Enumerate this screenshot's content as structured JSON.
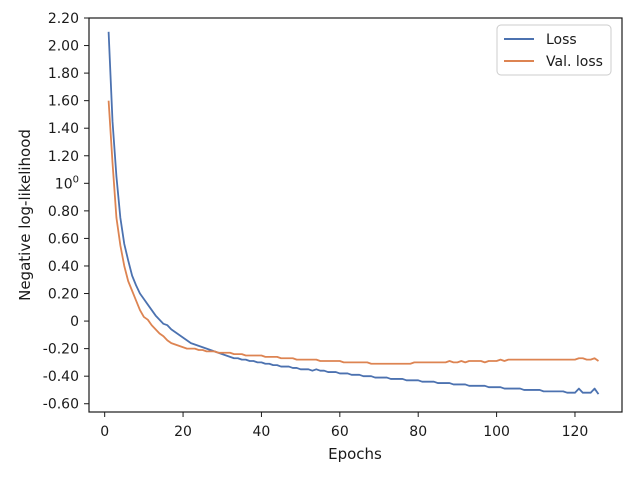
{
  "chart_data": {
    "type": "line",
    "xlabel": "Epochs",
    "ylabel": "Negative log-likelihood",
    "xlim": [
      -4,
      132
    ],
    "ylim": [
      -0.66,
      2.2
    ],
    "x_ticks": [
      0,
      20,
      40,
      60,
      80,
      100,
      120
    ],
    "x_tick_labels": [
      "0",
      "20",
      "40",
      "60",
      "80",
      "100",
      "120"
    ],
    "y_ticks": [
      2.2,
      2.0,
      1.8,
      1.6,
      1.4,
      1.2,
      1.0,
      0.8,
      0.6,
      0.4,
      0.2,
      0.0,
      -0.2,
      -0.4,
      -0.6
    ],
    "y_tick_labels": [
      "2.20",
      "2.00",
      "1.80",
      "1.60",
      "1.40",
      "1.20",
      "10^0",
      "0.80",
      "0.60",
      "0.40",
      "0.20",
      "0",
      "-0.20",
      "-0.40",
      "-0.60"
    ],
    "grid": false,
    "legend_position": "top-right",
    "series": [
      {
        "name": "Loss",
        "color": "#4c72b0",
        "x": [
          1,
          2,
          3,
          4,
          5,
          6,
          7,
          8,
          9,
          10,
          11,
          12,
          13,
          14,
          15,
          16,
          17,
          18,
          19,
          20,
          21,
          22,
          23,
          24,
          25,
          26,
          27,
          28,
          29,
          30,
          31,
          32,
          33,
          34,
          35,
          36,
          37,
          38,
          39,
          40,
          41,
          42,
          43,
          44,
          45,
          46,
          47,
          48,
          49,
          50,
          51,
          52,
          53,
          54,
          55,
          56,
          57,
          58,
          59,
          60,
          61,
          62,
          63,
          64,
          65,
          66,
          67,
          68,
          69,
          70,
          71,
          72,
          73,
          74,
          75,
          76,
          77,
          78,
          79,
          80,
          81,
          82,
          83,
          84,
          85,
          86,
          87,
          88,
          89,
          90,
          91,
          92,
          93,
          94,
          95,
          96,
          97,
          98,
          99,
          100,
          101,
          102,
          103,
          104,
          105,
          106,
          107,
          108,
          109,
          110,
          111,
          112,
          113,
          114,
          115,
          116,
          117,
          118,
          119,
          120,
          121,
          122,
          123,
          124,
          125,
          126
        ],
        "values": [
          2.1,
          1.45,
          1.05,
          0.75,
          0.56,
          0.44,
          0.33,
          0.26,
          0.2,
          0.16,
          0.12,
          0.08,
          0.04,
          0.01,
          -0.02,
          -0.03,
          -0.06,
          -0.08,
          -0.1,
          -0.12,
          -0.14,
          -0.16,
          -0.17,
          -0.18,
          -0.19,
          -0.2,
          -0.21,
          -0.22,
          -0.23,
          -0.24,
          -0.25,
          -0.26,
          -0.27,
          -0.27,
          -0.28,
          -0.28,
          -0.29,
          -0.29,
          -0.3,
          -0.3,
          -0.31,
          -0.31,
          -0.32,
          -0.32,
          -0.33,
          -0.33,
          -0.33,
          -0.34,
          -0.34,
          -0.35,
          -0.35,
          -0.35,
          -0.36,
          -0.35,
          -0.36,
          -0.36,
          -0.37,
          -0.37,
          -0.37,
          -0.38,
          -0.38,
          -0.38,
          -0.39,
          -0.39,
          -0.39,
          -0.4,
          -0.4,
          -0.4,
          -0.41,
          -0.41,
          -0.41,
          -0.41,
          -0.42,
          -0.42,
          -0.42,
          -0.42,
          -0.43,
          -0.43,
          -0.43,
          -0.43,
          -0.44,
          -0.44,
          -0.44,
          -0.44,
          -0.45,
          -0.45,
          -0.45,
          -0.45,
          -0.46,
          -0.46,
          -0.46,
          -0.46,
          -0.47,
          -0.47,
          -0.47,
          -0.47,
          -0.47,
          -0.48,
          -0.48,
          -0.48,
          -0.48,
          -0.49,
          -0.49,
          -0.49,
          -0.49,
          -0.49,
          -0.5,
          -0.5,
          -0.5,
          -0.5,
          -0.5,
          -0.51,
          -0.51,
          -0.51,
          -0.51,
          -0.51,
          -0.51,
          -0.52,
          -0.52,
          -0.52,
          -0.49,
          -0.52,
          -0.52,
          -0.52,
          -0.49,
          -0.53
        ]
      },
      {
        "name": "Val. loss",
        "color": "#dd8452",
        "x": [
          1,
          2,
          3,
          4,
          5,
          6,
          7,
          8,
          9,
          10,
          11,
          12,
          13,
          14,
          15,
          16,
          17,
          18,
          19,
          20,
          21,
          22,
          23,
          24,
          25,
          26,
          27,
          28,
          29,
          30,
          31,
          32,
          33,
          34,
          35,
          36,
          37,
          38,
          39,
          40,
          41,
          42,
          43,
          44,
          45,
          46,
          47,
          48,
          49,
          50,
          51,
          52,
          53,
          54,
          55,
          56,
          57,
          58,
          59,
          60,
          61,
          62,
          63,
          64,
          65,
          66,
          67,
          68,
          69,
          70,
          71,
          72,
          73,
          74,
          75,
          76,
          77,
          78,
          79,
          80,
          81,
          82,
          83,
          84,
          85,
          86,
          87,
          88,
          89,
          90,
          91,
          92,
          93,
          94,
          95,
          96,
          97,
          98,
          99,
          100,
          101,
          102,
          103,
          104,
          105,
          106,
          107,
          108,
          109,
          110,
          111,
          112,
          113,
          114,
          115,
          116,
          117,
          118,
          119,
          120,
          121,
          122,
          123,
          124,
          125,
          126
        ],
        "values": [
          1.6,
          1.15,
          0.75,
          0.55,
          0.4,
          0.29,
          0.22,
          0.15,
          0.08,
          0.03,
          0.01,
          -0.03,
          -0.06,
          -0.09,
          -0.11,
          -0.14,
          -0.16,
          -0.17,
          -0.18,
          -0.19,
          -0.2,
          -0.2,
          -0.2,
          -0.21,
          -0.21,
          -0.22,
          -0.22,
          -0.22,
          -0.23,
          -0.23,
          -0.23,
          -0.23,
          -0.24,
          -0.24,
          -0.24,
          -0.25,
          -0.25,
          -0.25,
          -0.25,
          -0.25,
          -0.26,
          -0.26,
          -0.26,
          -0.26,
          -0.27,
          -0.27,
          -0.27,
          -0.27,
          -0.28,
          -0.28,
          -0.28,
          -0.28,
          -0.28,
          -0.28,
          -0.29,
          -0.29,
          -0.29,
          -0.29,
          -0.29,
          -0.29,
          -0.3,
          -0.3,
          -0.3,
          -0.3,
          -0.3,
          -0.3,
          -0.3,
          -0.31,
          -0.31,
          -0.31,
          -0.31,
          -0.31,
          -0.31,
          -0.31,
          -0.31,
          -0.31,
          -0.31,
          -0.31,
          -0.3,
          -0.3,
          -0.3,
          -0.3,
          -0.3,
          -0.3,
          -0.3,
          -0.3,
          -0.3,
          -0.29,
          -0.3,
          -0.3,
          -0.29,
          -0.3,
          -0.29,
          -0.29,
          -0.29,
          -0.29,
          -0.3,
          -0.29,
          -0.29,
          -0.29,
          -0.28,
          -0.29,
          -0.28,
          -0.28,
          -0.28,
          -0.28,
          -0.28,
          -0.28,
          -0.28,
          -0.28,
          -0.28,
          -0.28,
          -0.28,
          -0.28,
          -0.28,
          -0.28,
          -0.28,
          -0.28,
          -0.28,
          -0.28,
          -0.27,
          -0.27,
          -0.28,
          -0.28,
          -0.27,
          -0.29
        ]
      }
    ]
  }
}
